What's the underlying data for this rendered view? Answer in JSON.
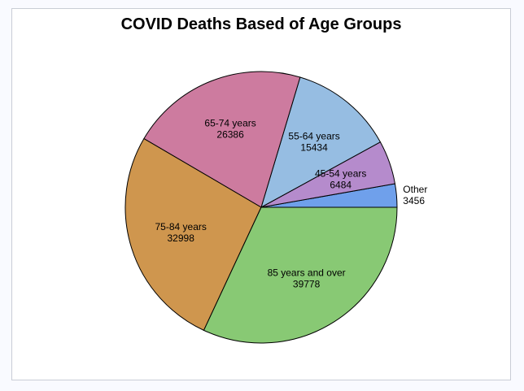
{
  "chart_data": {
    "type": "pie",
    "title": "COVID Deaths Based of Age Groups",
    "slices": [
      {
        "label": "Other",
        "value": 3456,
        "color": "#6fa0eb"
      },
      {
        "label": "45-54 years",
        "value": 6484,
        "color": "#b58bcc"
      },
      {
        "label": "55-64 years",
        "value": 15434,
        "color": "#96bde2"
      },
      {
        "label": "65-74 years",
        "value": 26386,
        "color": "#cd7b9f"
      },
      {
        "label": "75-84 years",
        "value": 32998,
        "color": "#cf964e"
      },
      {
        "label": "85 years and over",
        "value": 39778,
        "color": "#88c974"
      }
    ],
    "start_angle_deg": 0,
    "direction": "counterclockwise",
    "outline_color": "#000000"
  }
}
